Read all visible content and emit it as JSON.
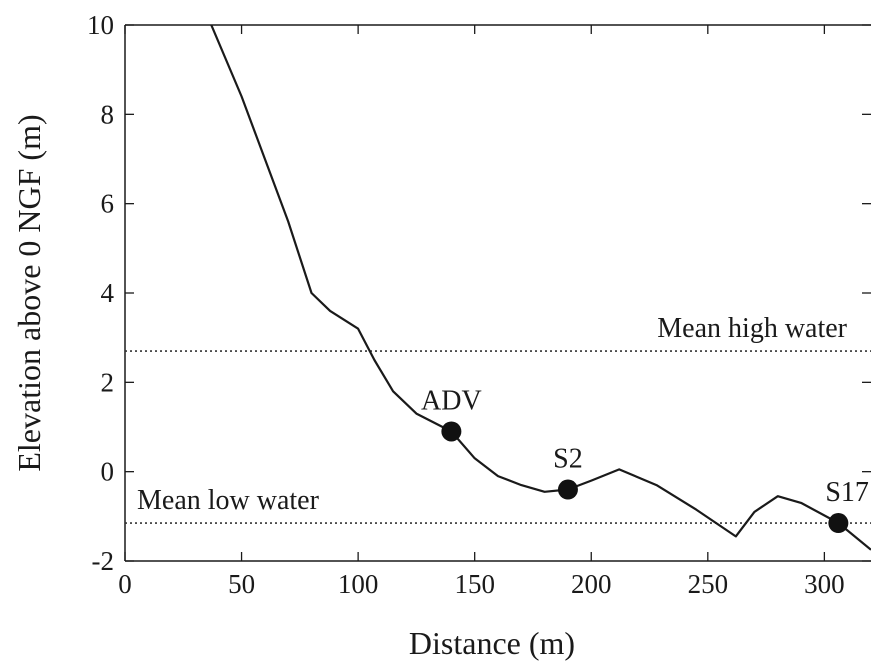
{
  "chart_data": {
    "type": "line",
    "xlabel": "Distance (m)",
    "ylabel": "Elevation above 0 NGF (m)",
    "xlim": [
      0,
      320
    ],
    "ylim": [
      -2,
      10
    ],
    "xticks": [
      "0",
      "50",
      "100",
      "150",
      "200",
      "250",
      "300"
    ],
    "yticks": [
      "-2",
      "0",
      "2",
      "4",
      "6",
      "8",
      "10"
    ],
    "grid": false,
    "series": [
      {
        "x": [
          37,
          50,
          60,
          70,
          80,
          88,
          100,
          107,
          115,
          125,
          140,
          150,
          160,
          170,
          180,
          190,
          200,
          212,
          228,
          245,
          262,
          270,
          280,
          290,
          306,
          320
        ],
        "y": [
          10,
          8.4,
          7.0,
          5.6,
          4.0,
          3.6,
          3.2,
          2.5,
          1.8,
          1.3,
          0.9,
          0.3,
          -0.1,
          -0.3,
          -0.45,
          -0.4,
          -0.2,
          0.05,
          -0.3,
          -0.85,
          -1.45,
          -0.9,
          -0.55,
          -0.7,
          -1.15,
          -1.75
        ]
      }
    ],
    "reference_lines": [
      {
        "label": "Mean high water",
        "y": 2.7
      },
      {
        "label": "Mean low water",
        "y": -1.15
      }
    ],
    "points": [
      {
        "label": "ADV",
        "x": 140,
        "y": 0.9
      },
      {
        "label": "S2",
        "x": 190,
        "y": -0.4
      },
      {
        "label": "S17",
        "x": 306,
        "y": -1.15
      }
    ],
    "colors": {
      "line": "#1a1a1a",
      "point": "#111111",
      "reference": "#333333"
    }
  }
}
